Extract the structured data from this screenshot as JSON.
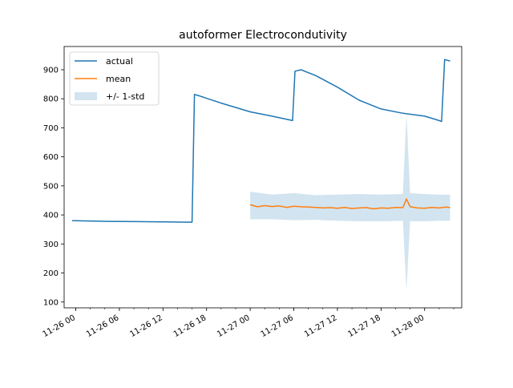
{
  "chart_data": {
    "type": "line",
    "title": "autoformer Electrocondutivity",
    "xlabel": "",
    "ylabel": "",
    "x_ticks": [
      "11-26 00",
      "11-26 06",
      "11-26 12",
      "11-26 18",
      "11-27 00",
      "11-27 06",
      "11-27 12",
      "11-27 18",
      "11-28 00"
    ],
    "x_range": [
      "2022-11-25 22:24",
      "2022-11-28 05:06"
    ],
    "ylim": [
      80,
      980
    ],
    "y_ticks": [
      100,
      200,
      300,
      400,
      500,
      600,
      700,
      800,
      900
    ],
    "legend_position": "top-left",
    "grid": false,
    "series": [
      {
        "name": "actual",
        "color": "#1f77b4",
        "x": [
          "2022-11-25 23:30",
          "2022-11-26 04:00",
          "2022-11-26 08:00",
          "2022-11-26 12:00",
          "2022-11-26 15:00",
          "2022-11-26 16:00",
          "2022-11-26 16:20",
          "2022-11-26 17:00",
          "2022-11-26 20:00",
          "2022-11-27 00:00",
          "2022-11-27 03:00",
          "2022-11-27 05:50",
          "2022-11-27 06:10",
          "2022-11-27 07:00",
          "2022-11-27 09:00",
          "2022-11-27 12:00",
          "2022-11-27 15:00",
          "2022-11-27 18:00",
          "2022-11-27 21:00",
          "2022-11-28 00:00",
          "2022-11-28 02:00",
          "2022-11-28 02:20",
          "2022-11-28 02:45",
          "2022-11-28 03:30"
        ],
        "values": [
          380,
          378,
          377,
          376,
          375,
          375,
          815,
          810,
          785,
          755,
          740,
          725,
          895,
          900,
          880,
          840,
          795,
          765,
          750,
          740,
          725,
          722,
          935,
          930
        ]
      },
      {
        "name": "mean",
        "color": "#ff7f0e",
        "x": [
          "2022-11-27 00:00",
          "2022-11-27 01:00",
          "2022-11-27 02:00",
          "2022-11-27 03:00",
          "2022-11-27 04:00",
          "2022-11-27 05:00",
          "2022-11-27 06:00",
          "2022-11-27 07:00",
          "2022-11-27 08:00",
          "2022-11-27 09:00",
          "2022-11-27 10:00",
          "2022-11-27 11:00",
          "2022-11-27 12:00",
          "2022-11-27 13:00",
          "2022-11-27 14:00",
          "2022-11-27 15:00",
          "2022-11-27 16:00",
          "2022-11-27 17:00",
          "2022-11-27 18:00",
          "2022-11-27 19:00",
          "2022-11-27 20:00",
          "2022-11-27 21:00",
          "2022-11-27 21:30",
          "2022-11-27 22:00",
          "2022-11-27 23:00",
          "2022-11-28 00:00",
          "2022-11-28 01:00",
          "2022-11-28 02:00",
          "2022-11-28 03:00",
          "2022-11-28 03:30"
        ],
        "values": [
          435,
          428,
          432,
          429,
          431,
          426,
          430,
          428,
          427,
          426,
          424,
          425,
          423,
          426,
          422,
          424,
          425,
          421,
          424,
          423,
          426,
          425,
          455,
          428,
          424,
          423,
          426,
          424,
          427,
          425
        ]
      }
    ],
    "band": {
      "name": "+/- 1-std",
      "color": "#1f77b4",
      "opacity": 0.2,
      "x": [
        "2022-11-27 00:00",
        "2022-11-27 03:00",
        "2022-11-27 06:00",
        "2022-11-27 09:00",
        "2022-11-27 12:00",
        "2022-11-27 15:00",
        "2022-11-27 18:00",
        "2022-11-27 21:00",
        "2022-11-27 21:30",
        "2022-11-27 22:00",
        "2022-11-28 00:00",
        "2022-11-28 02:00",
        "2022-11-28 03:30"
      ],
      "upper": [
        480,
        470,
        475,
        468,
        470,
        472,
        470,
        472,
        750,
        475,
        472,
        470,
        470
      ],
      "lower": [
        385,
        385,
        382,
        383,
        380,
        378,
        378,
        380,
        140,
        378,
        378,
        380,
        380
      ]
    }
  }
}
